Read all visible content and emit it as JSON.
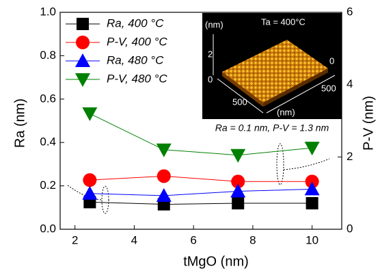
{
  "chart_data": {
    "type": "line",
    "x_label": "tMgO (nm)",
    "y_label": "Ra (nm)",
    "y2_label": "P-V (nm)",
    "x": [
      2.5,
      5,
      7.5,
      10
    ],
    "xlim": [
      1.5,
      11
    ],
    "xticks": [
      2,
      4,
      6,
      8,
      10
    ],
    "ylim": [
      0,
      1
    ],
    "yticks": [
      {
        "value": 0,
        "label": "0.0"
      },
      {
        "value": 0.2,
        "label": "0.2"
      },
      {
        "value": 0.4,
        "label": "0.4"
      },
      {
        "value": 0.6,
        "label": "0.6"
      },
      {
        "value": 0.8,
        "label": "0.8"
      },
      {
        "value": 1,
        "label": "1.0"
      }
    ],
    "y2lim": [
      0,
      6
    ],
    "y2ticks": [
      0,
      2,
      4,
      6
    ],
    "series": [
      {
        "name": "Ra, 400 °C",
        "color": "#000000",
        "marker": "square",
        "values": [
          0.125,
          0.115,
          0.12,
          0.12
        ]
      },
      {
        "name": "P-V, 400 °C",
        "color": "#ff0000",
        "marker": "circle",
        "axis": "y2",
        "values": [
          1.36,
          1.47,
          1.32,
          1.32
        ]
      },
      {
        "name": "Ra, 480 °C",
        "color": "#0000ff",
        "marker": "triangle-up",
        "values": [
          0.165,
          0.155,
          0.175,
          0.185
        ]
      },
      {
        "name": "P-V, 480 °C",
        "color": "#008000",
        "marker": "triangle-down",
        "axis": "y2",
        "values": [
          3.2,
          2.2,
          2.05,
          2.25
        ]
      }
    ],
    "inset": {
      "temperature": "Ta = 400°C",
      "z_unit": "(nm)",
      "z_ticks": [
        "2",
        "0"
      ],
      "x_tick": "500",
      "x_unit": "(nm)",
      "y_ticks": [
        "500",
        "0"
      ],
      "caption": "Ra = 0.1 nm, P-V = 1.3 nm"
    }
  }
}
